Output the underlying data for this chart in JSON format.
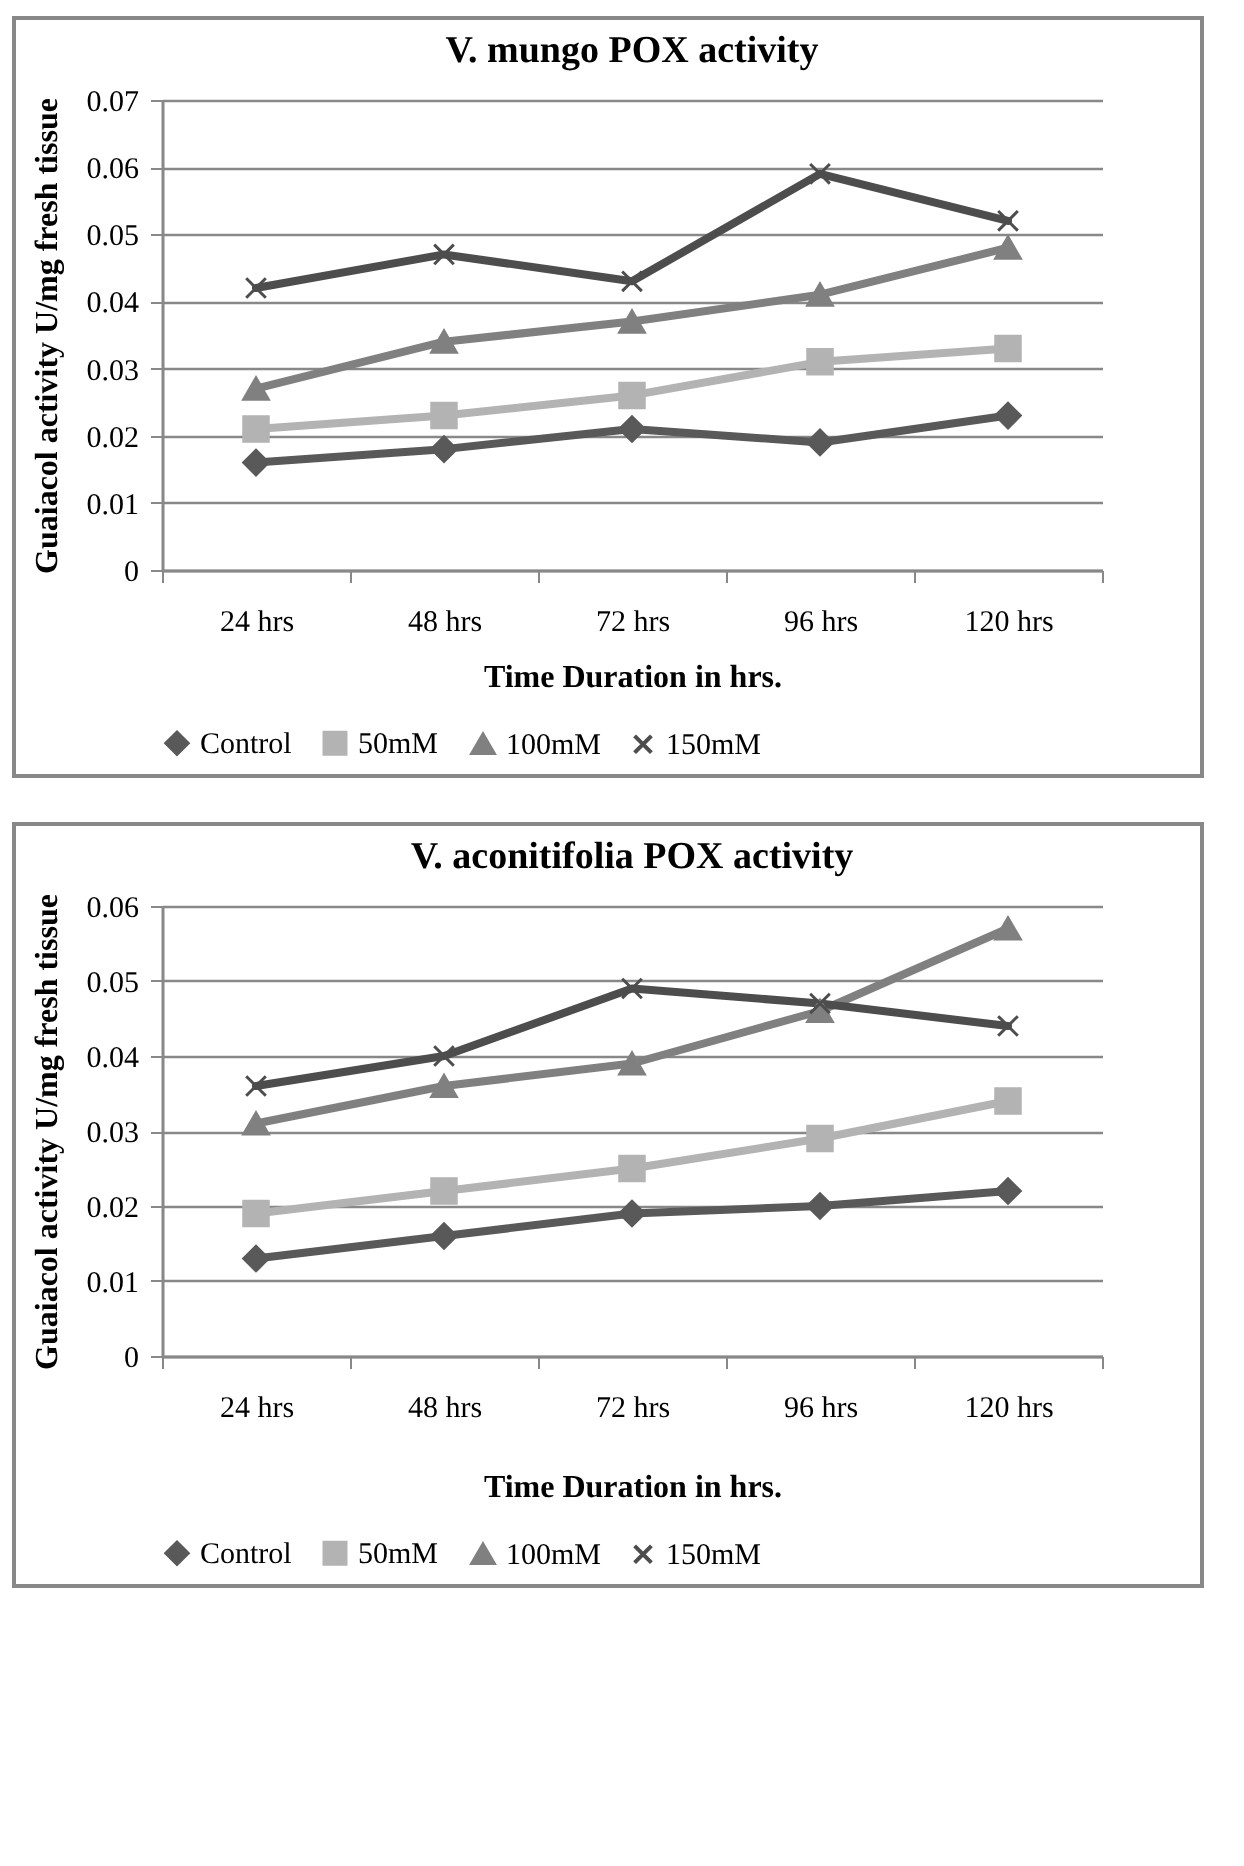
{
  "chart_data": [
    {
      "type": "line",
      "title": "V. mungo POX activity",
      "xlabel": "Time Duration in hrs.",
      "ylabel": "Guaiacol activity U/mg fresh tissue",
      "categories": [
        "24 hrs",
        "48 hrs",
        "72 hrs",
        "96 hrs",
        "120 hrs"
      ],
      "series": [
        {
          "name": "Control",
          "color": "#595959",
          "marker": "diamond",
          "values": [
            0.016,
            0.018,
            0.021,
            0.019,
            0.023
          ]
        },
        {
          "name": "50mM",
          "color": "#b3b3b3",
          "marker": "square",
          "values": [
            0.021,
            0.023,
            0.026,
            0.031,
            0.033
          ]
        },
        {
          "name": "100mM",
          "color": "#808080",
          "marker": "triangle",
          "values": [
            0.027,
            0.034,
            0.037,
            0.041,
            0.048
          ]
        },
        {
          "name": "150mM",
          "color": "#4d4d4d",
          "marker": "cross",
          "values": [
            0.042,
            0.047,
            0.043,
            0.059,
            0.052
          ]
        }
      ],
      "ylim": [
        0,
        0.07
      ],
      "yticks": [
        0,
        0.01,
        0.02,
        0.03,
        0.04,
        0.05,
        0.06,
        0.07
      ],
      "grid": "y",
      "legend": "bottom"
    },
    {
      "type": "line",
      "title": "V. aconitifolia POX activity",
      "xlabel": "Time Duration in hrs.",
      "ylabel": "Guaiacol activity U/mg fresh tissue",
      "categories": [
        "24 hrs",
        "48 hrs",
        "72 hrs",
        "96 hrs",
        "120 hrs"
      ],
      "series": [
        {
          "name": "Control",
          "color": "#595959",
          "marker": "diamond",
          "values": [
            0.013,
            0.016,
            0.019,
            0.02,
            0.022
          ]
        },
        {
          "name": "50mM",
          "color": "#b3b3b3",
          "marker": "square",
          "values": [
            0.019,
            0.022,
            0.025,
            0.029,
            0.034
          ]
        },
        {
          "name": "100mM",
          "color": "#808080",
          "marker": "triangle",
          "values": [
            0.031,
            0.036,
            0.039,
            0.046,
            0.057
          ]
        },
        {
          "name": "150mM",
          "color": "#4d4d4d",
          "marker": "cross",
          "values": [
            0.036,
            0.04,
            0.049,
            0.047,
            0.044
          ]
        }
      ],
      "ylim": [
        0,
        0.06
      ],
      "yticks": [
        0,
        0.01,
        0.02,
        0.03,
        0.04,
        0.05,
        0.06
      ],
      "grid": "y",
      "legend": "bottom"
    }
  ]
}
